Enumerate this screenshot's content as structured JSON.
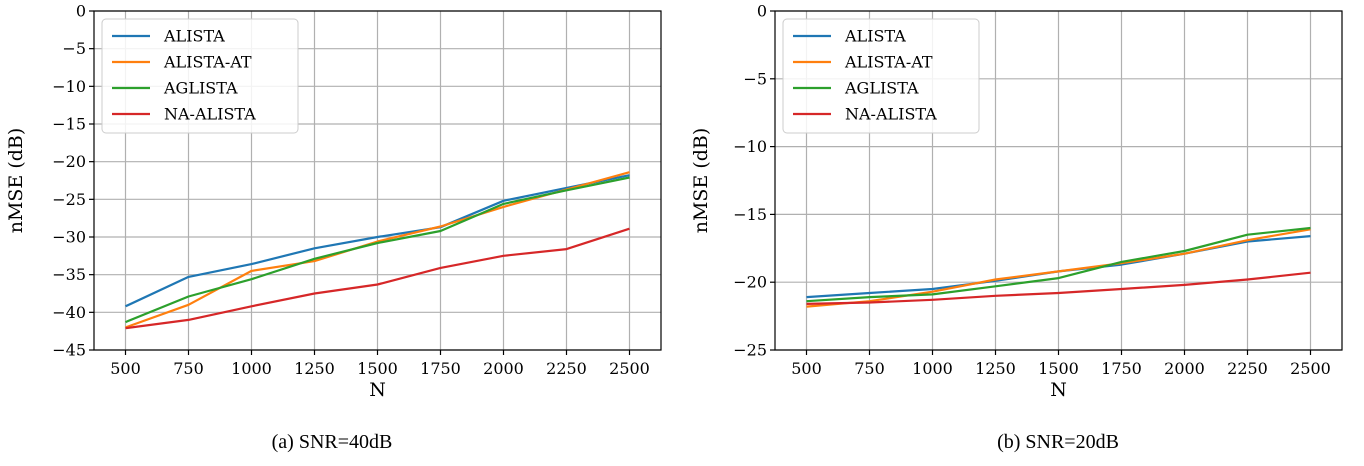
{
  "chart_data": [
    {
      "type": "line",
      "caption": "(a)  SNR=40dB",
      "xlabel": "N",
      "ylabel": "nMSE (dB)",
      "ylim": [
        -45,
        0
      ],
      "xlim": [
        375,
        2625
      ],
      "xticks": [
        500,
        750,
        1000,
        1250,
        1500,
        1750,
        2000,
        2250,
        2500
      ],
      "yticks": [
        0,
        -5,
        -10,
        -15,
        -20,
        -25,
        -30,
        -35,
        -40,
        -45
      ],
      "ytick_labels": [
        "0",
        "−5",
        "−10",
        "−15",
        "−20",
        "−25",
        "−30",
        "−35",
        "−40",
        "−45"
      ],
      "grid": true,
      "legend_position": "top-left",
      "x": [
        500,
        750,
        1000,
        1250,
        1500,
        1750,
        2000,
        2250,
        2500
      ],
      "series": [
        {
          "name": "ALISTA",
          "color": "#1f77b4",
          "values": [
            -39.2,
            -35.3,
            -33.6,
            -31.5,
            -30.0,
            -28.7,
            -25.2,
            -23.5,
            -21.8
          ]
        },
        {
          "name": "ALISTA-AT",
          "color": "#ff7f0e",
          "values": [
            -42.0,
            -39.0,
            -34.5,
            -33.2,
            -30.6,
            -28.6,
            -26.0,
            -23.7,
            -21.4
          ]
        },
        {
          "name": "AGLISTA",
          "color": "#2ca02c",
          "values": [
            -41.3,
            -37.9,
            -35.6,
            -32.9,
            -30.8,
            -29.2,
            -25.6,
            -23.8,
            -22.1
          ]
        },
        {
          "name": "NA-ALISTA",
          "color": "#d62728",
          "values": [
            -42.1,
            -41.0,
            -39.2,
            -37.5,
            -36.3,
            -34.1,
            -32.5,
            -31.6,
            -28.9
          ]
        }
      ]
    },
    {
      "type": "line",
      "caption": "(b)  SNR=20dB",
      "xlabel": "N",
      "ylabel": "nMSE (dB)",
      "ylim": [
        -25,
        0
      ],
      "xlim": [
        375,
        2625
      ],
      "xticks": [
        500,
        750,
        1000,
        1250,
        1500,
        1750,
        2000,
        2250,
        2500
      ],
      "yticks": [
        0,
        -5,
        -10,
        -15,
        -20,
        -25
      ],
      "ytick_labels": [
        "0",
        "−5",
        "−10",
        "−15",
        "−20",
        "−25"
      ],
      "grid": true,
      "legend_position": "top-left",
      "x": [
        500,
        750,
        1000,
        1250,
        1500,
        1750,
        2000,
        2250,
        2500
      ],
      "series": [
        {
          "name": "ALISTA",
          "color": "#1f77b4",
          "values": [
            -21.1,
            -20.8,
            -20.5,
            -19.9,
            -19.2,
            -18.7,
            -17.9,
            -17.0,
            -16.6
          ]
        },
        {
          "name": "ALISTA-AT",
          "color": "#ff7f0e",
          "values": [
            -21.8,
            -21.4,
            -20.7,
            -19.8,
            -19.2,
            -18.6,
            -17.9,
            -16.9,
            -16.1
          ]
        },
        {
          "name": "AGLISTA",
          "color": "#2ca02c",
          "values": [
            -21.4,
            -21.1,
            -20.9,
            -20.3,
            -19.7,
            -18.5,
            -17.7,
            -16.5,
            -16.0
          ]
        },
        {
          "name": "NA-ALISTA",
          "color": "#d62728",
          "values": [
            -21.6,
            -21.5,
            -21.3,
            -21.0,
            -20.8,
            -20.5,
            -20.2,
            -19.8,
            -19.3
          ]
        }
      ]
    }
  ]
}
